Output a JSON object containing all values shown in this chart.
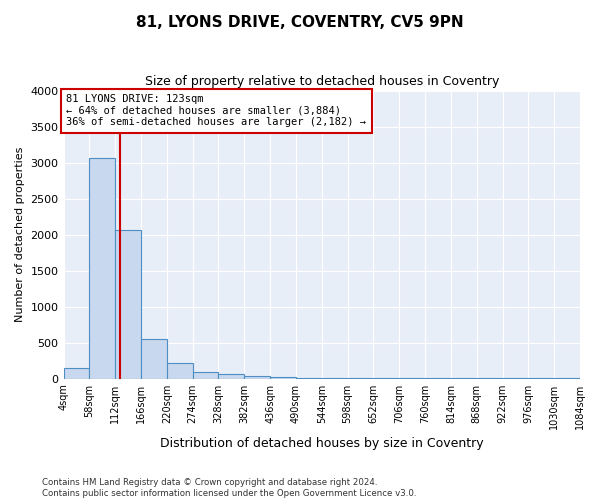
{
  "title": "81, LYONS DRIVE, COVENTRY, CV5 9PN",
  "subtitle": "Size of property relative to detached houses in Coventry",
  "xlabel": "Distribution of detached houses by size in Coventry",
  "ylabel": "Number of detached properties",
  "bin_labels": [
    "4sqm",
    "58sqm",
    "112sqm",
    "166sqm",
    "220sqm",
    "274sqm",
    "328sqm",
    "382sqm",
    "436sqm",
    "490sqm",
    "544sqm",
    "598sqm",
    "652sqm",
    "706sqm",
    "760sqm",
    "814sqm",
    "868sqm",
    "922sqm",
    "976sqm",
    "1030sqm",
    "1084sqm"
  ],
  "bar_values": [
    150,
    3060,
    2060,
    550,
    210,
    90,
    70,
    30,
    15,
    10,
    8,
    5,
    4,
    3,
    2,
    2,
    1,
    1,
    1,
    1
  ],
  "bin_edges": [
    4,
    58,
    112,
    166,
    220,
    274,
    328,
    382,
    436,
    490,
    544,
    598,
    652,
    706,
    760,
    814,
    868,
    922,
    976,
    1030,
    1084
  ],
  "bar_color": "#c8d8ee",
  "bar_edge_color": "#4d8fc4",
  "property_size": 123,
  "vline_color": "#cc0000",
  "annotation_line1": "81 LYONS DRIVE: 123sqm",
  "annotation_line2": "← 64% of detached houses are smaller (3,884)",
  "annotation_line3": "36% of semi-detached houses are larger (2,182) →",
  "annotation_box_color": "#cc0000",
  "ylim": [
    0,
    4000
  ],
  "yticks": [
    0,
    500,
    1000,
    1500,
    2000,
    2500,
    3000,
    3500,
    4000
  ],
  "background_color": "#ffffff",
  "plot_bg_color": "#e8eef8",
  "grid_color": "#ffffff",
  "footer_line1": "Contains HM Land Registry data © Crown copyright and database right 2024.",
  "footer_line2": "Contains public sector information licensed under the Open Government Licence v3.0."
}
